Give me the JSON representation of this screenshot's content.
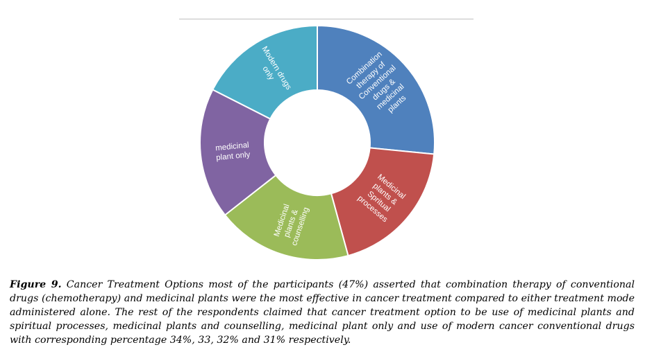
{
  "caption": {
    "figure_label": "Figure 9.",
    "text": "Cancer Treatment Options most of the participants (47%) asserted that combination therapy of conventional drugs (chemotherapy) and medicinal plants were the most effective in cancer treatment compared to either treatment mode administered alone. The rest of the respondents claimed that cancer treatment option to be use of medicinal plants and spiritual processes, medicinal plants and counselling, medicinal plant only and use of modern cancer conventional drugs with corresponding percentage 34%, 33, 32% and 31% respectively."
  },
  "chart_data": {
    "type": "pie",
    "donut": true,
    "legend": "none",
    "categories": [
      "Combination therapy of Conventional drugs & medicinal plants",
      "Medicinal plants & Spritual processes",
      "Medicinal plants & counselling",
      "medicinal plant only",
      "Modern drugs only"
    ],
    "label_lines": [
      [
        "Combination",
        "therapy of",
        "Conventional",
        "drugs &",
        "medicinal",
        "plants"
      ],
      [
        "Medicinal",
        "plants &",
        "Spritual",
        "processes"
      ],
      [
        "Medicinal",
        "plants &",
        "counselling"
      ],
      [
        "medicinal",
        "plant only"
      ],
      [
        "Modern drugs",
        "only"
      ]
    ],
    "values": [
      47,
      34,
      33,
      32,
      31
    ],
    "colors": [
      "#4f81bd",
      "#c0504d",
      "#9bbb59",
      "#8064a2",
      "#4bacc6"
    ]
  }
}
